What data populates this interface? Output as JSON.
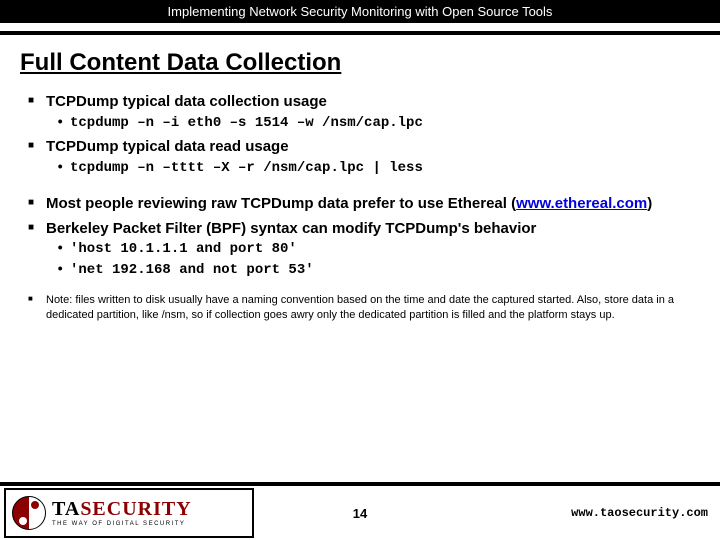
{
  "header": "Implementing Network Security Monitoring with Open Source Tools",
  "title": "Full Content Data Collection",
  "b1": "TCPDump typical data collection usage",
  "b1a": "tcpdump –n –i eth0 –s 1514 –w /nsm/cap.lpc",
  "b2": "TCPDump typical data read usage",
  "b2a": "tcpdump –n –tttt –X –r /nsm/cap.lpc | less",
  "b3_pre": "Most people reviewing raw TCPDump data prefer to use Ethereal (",
  "b3_link": "www.ethereal.com",
  "b3_post": ")",
  "b4": "Berkeley Packet Filter (BPF) syntax can modify TCPDump's behavior",
  "b4a": "'host 10.1.1.1 and port 80'",
  "b4b": "'net 192.168 and not port 53'",
  "note": "Note: files written to disk usually have a naming convention based on the time and date the captured started.  Also, store data in a dedicated partition, like /nsm, so if collection goes awry only the dedicated partition is filled and the platform stays up.",
  "logo_main1": "TA",
  "logo_main2": "SECURITY",
  "logo_sub": "THE WAY OF DIGITAL SECURITY",
  "page_num": "14",
  "footer_url": "www.taosecurity.com"
}
